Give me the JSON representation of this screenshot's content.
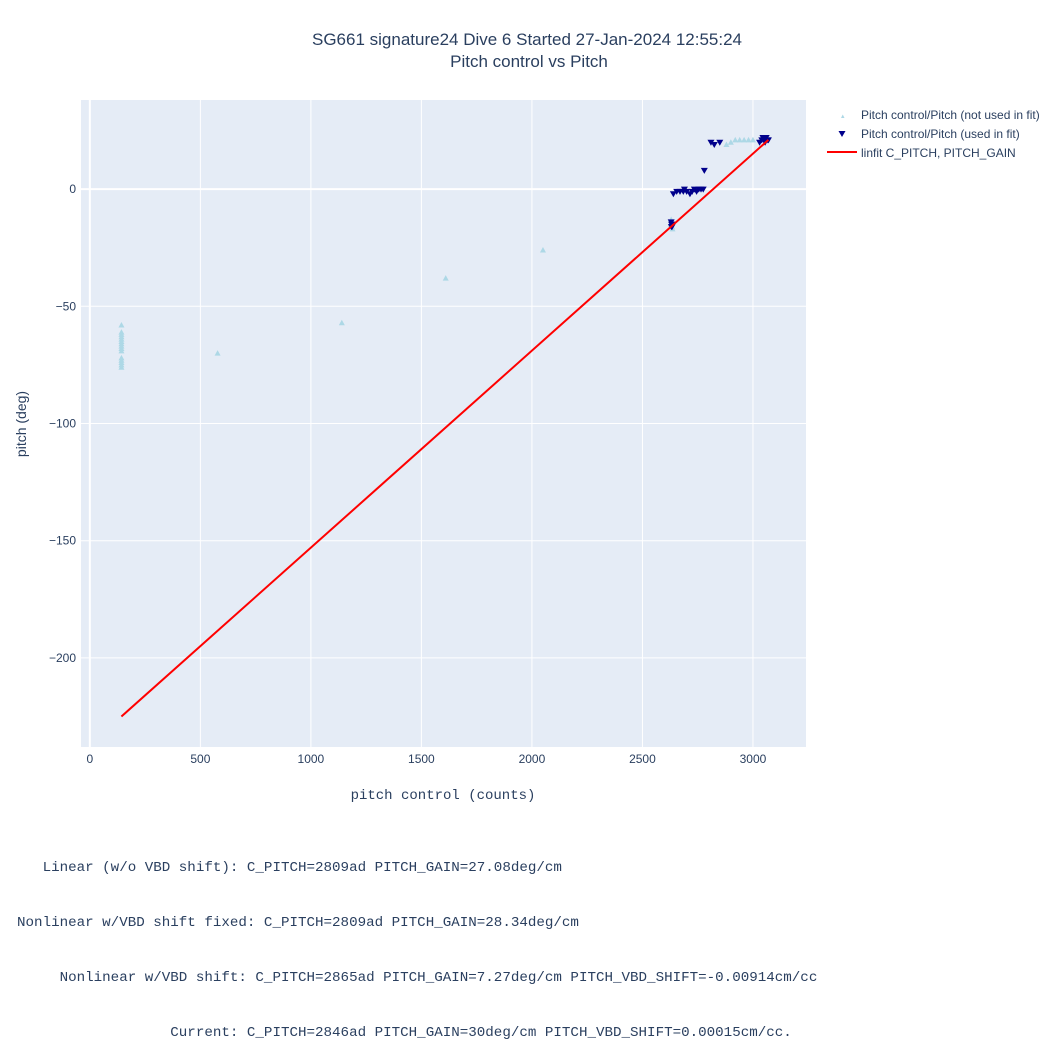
{
  "chart_data": {
    "type": "scatter",
    "title": "SG661 signature24 Dive 6 Started 27-Jan-2024 12:55:24",
    "subtitle": "Pitch control vs Pitch",
    "xlabel": "pitch control (counts)",
    "ylabel": "pitch (deg)",
    "xlim": [
      -40,
      3240
    ],
    "ylim": [
      -238,
      38
    ],
    "x_ticks": [
      0,
      500,
      1000,
      1500,
      2000,
      2500,
      3000
    ],
    "y_ticks": [
      0,
      -50,
      -100,
      -150,
      -200
    ],
    "x_tick_labels": [
      "0",
      "500",
      "1000",
      "1500",
      "2000",
      "2500",
      "3000"
    ],
    "y_tick_labels": [
      "0",
      "−50",
      "−100",
      "−150",
      "−200"
    ],
    "grid": true,
    "legend_position": "top-right-outside",
    "series": [
      {
        "name": "Pitch control/Pitch (not used in fit)",
        "marker": "triangle-up",
        "color": "#add8e6",
        "points": [
          [
            143,
            -58
          ],
          [
            143,
            -61
          ],
          [
            143,
            -62
          ],
          [
            143,
            -63
          ],
          [
            143,
            -64
          ],
          [
            143,
            -65
          ],
          [
            143,
            -66
          ],
          [
            143,
            -67
          ],
          [
            143,
            -68
          ],
          [
            143,
            -69
          ],
          [
            143,
            -72
          ],
          [
            143,
            -73
          ],
          [
            143,
            -74
          ],
          [
            143,
            -75
          ],
          [
            143,
            -76
          ],
          [
            578,
            -70
          ],
          [
            1140,
            -57
          ],
          [
            1610,
            -38
          ],
          [
            2050,
            -26
          ],
          [
            2630,
            -13
          ],
          [
            2632,
            -14
          ],
          [
            2634,
            -16
          ],
          [
            2636,
            -17
          ],
          [
            2628,
            -15
          ],
          [
            2880,
            19
          ],
          [
            2900,
            20
          ],
          [
            2920,
            21
          ],
          [
            2940,
            21
          ],
          [
            2960,
            21
          ],
          [
            2980,
            21
          ],
          [
            3000,
            21
          ]
        ]
      },
      {
        "name": "Pitch control/Pitch (used in fit)",
        "marker": "triangle-down",
        "color": "#00008b",
        "points": [
          [
            2630,
            -14
          ],
          [
            2632,
            -15
          ],
          [
            2634,
            -16
          ],
          [
            2636,
            -15
          ],
          [
            2631,
            -16
          ],
          [
            2640,
            -2
          ],
          [
            2655,
            -1
          ],
          [
            2670,
            -1
          ],
          [
            2685,
            -1
          ],
          [
            2690,
            0
          ],
          [
            2700,
            -1
          ],
          [
            2715,
            -2
          ],
          [
            2725,
            -1
          ],
          [
            2735,
            0
          ],
          [
            2745,
            -1
          ],
          [
            2755,
            0
          ],
          [
            2765,
            0
          ],
          [
            2775,
            0
          ],
          [
            2780,
            8
          ],
          [
            2810,
            20
          ],
          [
            2825,
            19
          ],
          [
            2850,
            20
          ],
          [
            3030,
            20
          ],
          [
            3040,
            21
          ],
          [
            3045,
            22
          ],
          [
            3050,
            21
          ],
          [
            3055,
            20
          ],
          [
            3060,
            22
          ],
          [
            3065,
            21
          ],
          [
            3070,
            21
          ]
        ]
      },
      {
        "name": "linfit C_PITCH, PITCH_GAIN",
        "mode": "line",
        "color": "#ff0000",
        "points": [
          [
            143,
            -225
          ],
          [
            3070,
            21
          ]
        ]
      }
    ]
  },
  "notes": [
    "     Linear (w/o VBD shift): C_PITCH=2809ad PITCH_GAIN=27.08deg/cm",
    "  Nonlinear w/VBD shift fixed: C_PITCH=2809ad PITCH_GAIN=28.34deg/cm",
    "       Nonlinear w/VBD shift: C_PITCH=2865ad PITCH_GAIN=7.27deg/cm PITCH_VBD_SHIFT=-0.00914cm/cc",
    "                    Current: C_PITCH=2846ad PITCH_GAIN=30deg/cm PITCH_VBD_SHIFT=0.00015cm/cc."
  ]
}
